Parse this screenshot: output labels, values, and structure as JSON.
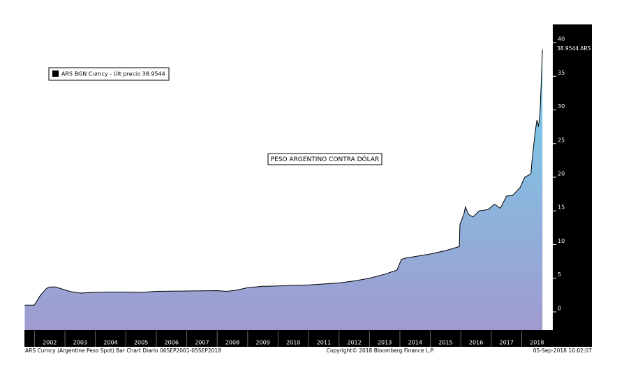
{
  "chart_data": {
    "type": "area",
    "title": "PESO ARGENTINO CONTRA DÓLAR",
    "footer_left": "ARS Curncy (Argentine Peso Spot) Bar Chart  Diario 06SEP2001-05SEP2018",
    "footer_center": "Copyright© 2018 Bloomberg Finance L.P.",
    "footer_right": "05-Sep-2018 10:02:07",
    "last_price_label": "38.9544 ARS",
    "series": [
      {
        "name": "ARS BGN Curncy - Últ precio 38.9544",
        "color": "#000000",
        "fill_gradient": [
          "#73d3ee",
          "#a09bcf"
        ],
        "x": [
          2001.68,
          2001.99,
          2002.05,
          2002.2,
          2002.4,
          2002.5,
          2002.7,
          2002.9,
          2003.2,
          2003.5,
          2004.0,
          2004.5,
          2005.0,
          2005.5,
          2006.0,
          2007.0,
          2008.0,
          2008.3,
          2008.6,
          2009.0,
          2009.5,
          2010.0,
          2011.0,
          2012.0,
          2012.5,
          2013.0,
          2013.5,
          2013.9,
          2014.05,
          2014.2,
          2014.6,
          2015.0,
          2015.5,
          2015.95,
          2015.97,
          2016.1,
          2016.15,
          2016.25,
          2016.4,
          2016.6,
          2016.9,
          2017.1,
          2017.3,
          2017.5,
          2017.7,
          2017.95,
          2018.1,
          2018.3,
          2018.35,
          2018.45,
          2018.5,
          2018.55,
          2018.6,
          2018.64,
          2018.68
        ],
        "values": [
          1.0,
          1.0,
          1.4,
          2.5,
          3.5,
          3.7,
          3.7,
          3.4,
          3.0,
          2.8,
          2.9,
          2.95,
          2.95,
          2.9,
          3.05,
          3.1,
          3.15,
          3.05,
          3.2,
          3.6,
          3.8,
          3.85,
          4.0,
          4.3,
          4.6,
          5.0,
          5.6,
          6.2,
          7.8,
          8.0,
          8.3,
          8.6,
          9.1,
          9.7,
          13.0,
          14.5,
          15.6,
          14.5,
          14.1,
          15.0,
          15.2,
          16.0,
          15.4,
          17.2,
          17.3,
          18.5,
          20.0,
          20.5,
          23.0,
          27.0,
          28.5,
          27.5,
          29.5,
          34,
          38.9544
        ]
      }
    ],
    "xlim": [
      2001.67,
      2019.02
    ],
    "xticks": [
      2002,
      2003,
      2004,
      2005,
      2006,
      2007,
      2008,
      2009,
      2010,
      2011,
      2012,
      2013,
      2014,
      2015,
      2016,
      2017,
      2018
    ],
    "ylim": [
      -2.7,
      42.7
    ],
    "yticks": [
      0,
      5,
      10,
      15,
      20,
      25,
      30,
      35,
      40
    ],
    "y_axis_side": "right"
  }
}
